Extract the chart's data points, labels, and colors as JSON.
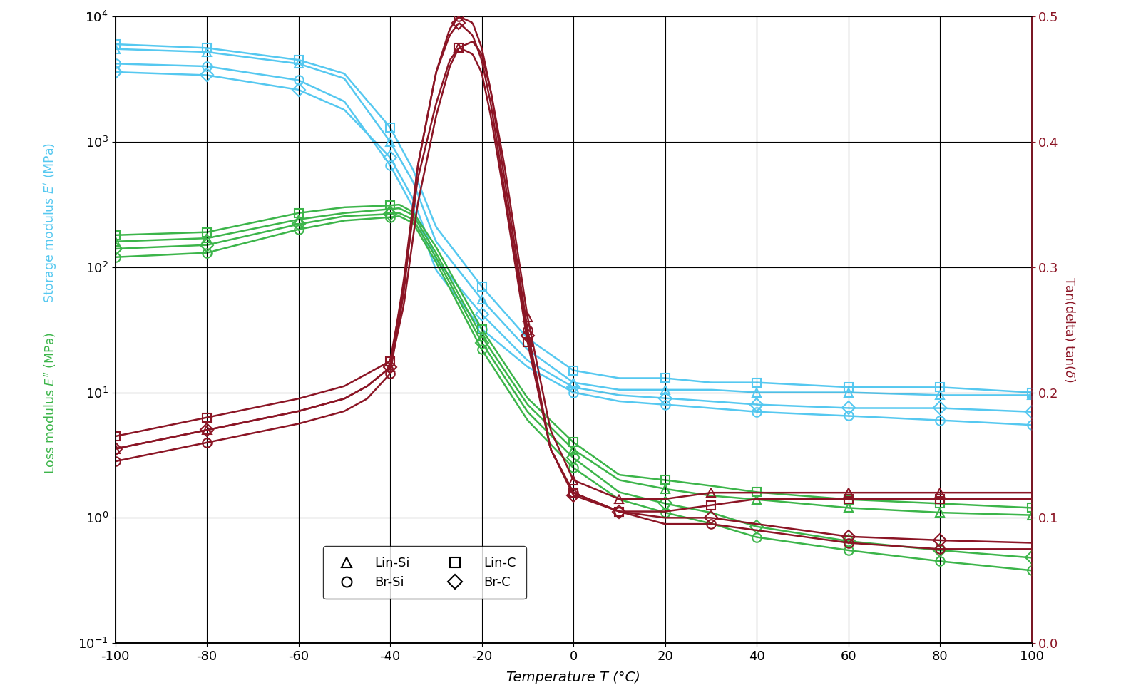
{
  "xlabel": "Temperature T (°C)",
  "xlim": [
    -100,
    100
  ],
  "ylim_left": [
    0.1,
    10000
  ],
  "ylim_right": [
    0.0,
    0.5
  ],
  "colors": {
    "blue": "#55c8f0",
    "green": "#3cb54a",
    "red": "#8b1525"
  },
  "xticks": [
    -100,
    -80,
    -60,
    -40,
    -20,
    0,
    20,
    40,
    60,
    80,
    100
  ],
  "yticks_right": [
    0.0,
    0.1,
    0.2,
    0.3,
    0.4,
    0.5
  ],
  "series": {
    "Lin_Si_storage": {
      "T": [
        -100,
        -80,
        -60,
        -50,
        -40,
        -35,
        -30,
        -20,
        -10,
        0,
        10,
        20,
        30,
        40,
        60,
        80,
        100
      ],
      "E": [
        5500,
        5200,
        4200,
        3200,
        1000,
        480,
        160,
        55,
        22,
        12,
        10.5,
        10.5,
        10.5,
        10,
        10,
        9.5,
        9.5
      ],
      "marker": "^"
    },
    "Lin_C_storage": {
      "T": [
        -100,
        -80,
        -60,
        -50,
        -40,
        -35,
        -30,
        -20,
        -10,
        0,
        10,
        20,
        30,
        40,
        60,
        80,
        100
      ],
      "E": [
        6000,
        5600,
        4500,
        3500,
        1300,
        600,
        210,
        70,
        27,
        15,
        13,
        13,
        12,
        12,
        11,
        11,
        10
      ],
      "marker": "s"
    },
    "Br_Si_storage": {
      "T": [
        -100,
        -80,
        -60,
        -50,
        -40,
        -35,
        -30,
        -20,
        -10,
        0,
        10,
        20,
        30,
        40,
        60,
        80,
        100
      ],
      "E": [
        4200,
        4000,
        3100,
        2100,
        650,
        300,
        95,
        32,
        16,
        10,
        8.5,
        8,
        7.5,
        7,
        6.5,
        6,
        5.5
      ],
      "marker": "o"
    },
    "Br_C_storage": {
      "T": [
        -100,
        -80,
        -60,
        -50,
        -40,
        -35,
        -30,
        -20,
        -10,
        0,
        10,
        20,
        30,
        40,
        60,
        80,
        100
      ],
      "E": [
        3600,
        3400,
        2600,
        1800,
        750,
        350,
        115,
        42,
        18,
        11,
        9.5,
        9,
        8.5,
        8,
        7.5,
        7.5,
        7
      ],
      "marker": "D"
    },
    "Lin_Si_loss": {
      "T": [
        -100,
        -80,
        -60,
        -50,
        -40,
        -38,
        -35,
        -30,
        -20,
        -10,
        0,
        10,
        20,
        30,
        40,
        60,
        80,
        100
      ],
      "E": [
        160,
        170,
        240,
        270,
        290,
        295,
        260,
        130,
        28,
        8,
        3.5,
        2.0,
        1.7,
        1.5,
        1.4,
        1.2,
        1.1,
        1.05
      ],
      "marker": "^"
    },
    "Lin_C_loss": {
      "T": [
        -100,
        -80,
        -60,
        -50,
        -40,
        -38,
        -35,
        -30,
        -20,
        -10,
        0,
        10,
        20,
        30,
        40,
        60,
        80,
        100
      ],
      "E": [
        180,
        190,
        270,
        300,
        310,
        315,
        275,
        145,
        32,
        9,
        4,
        2.2,
        2.0,
        1.8,
        1.6,
        1.4,
        1.3,
        1.2
      ],
      "marker": "s"
    },
    "Br_Si_loss": {
      "T": [
        -100,
        -80,
        -60,
        -50,
        -40,
        -38,
        -35,
        -30,
        -20,
        -10,
        0,
        10,
        20,
        30,
        40,
        60,
        80,
        100
      ],
      "E": [
        120,
        130,
        200,
        235,
        250,
        255,
        225,
        110,
        22,
        6,
        2.5,
        1.4,
        1.1,
        0.9,
        0.7,
        0.55,
        0.45,
        0.38
      ],
      "marker": "o"
    },
    "Br_C_loss": {
      "T": [
        -100,
        -80,
        -60,
        -50,
        -40,
        -38,
        -35,
        -30,
        -20,
        -10,
        0,
        10,
        20,
        30,
        40,
        60,
        80,
        100
      ],
      "E": [
        140,
        150,
        220,
        255,
        265,
        270,
        240,
        120,
        25,
        7,
        3.0,
        1.6,
        1.3,
        1.1,
        0.85,
        0.65,
        0.55,
        0.48
      ],
      "marker": "D"
    },
    "Lin_Si_tan": {
      "T": [
        -100,
        -80,
        -60,
        -55,
        -50,
        -45,
        -40,
        -37,
        -34,
        -30,
        -27,
        -25,
        -22,
        -20,
        -18,
        -15,
        -10,
        -5,
        0,
        10,
        20,
        30,
        40,
        60,
        80,
        100
      ],
      "E": [
        0.155,
        0.17,
        0.185,
        0.19,
        0.195,
        0.205,
        0.22,
        0.27,
        0.35,
        0.42,
        0.46,
        0.475,
        0.48,
        0.47,
        0.44,
        0.38,
        0.26,
        0.17,
        0.13,
        0.115,
        0.115,
        0.12,
        0.12,
        0.12,
        0.12,
        0.12
      ],
      "marker": "^"
    },
    "Lin_C_tan": {
      "T": [
        -100,
        -80,
        -60,
        -55,
        -50,
        -45,
        -40,
        -37,
        -34,
        -30,
        -27,
        -25,
        -22,
        -20,
        -18,
        -15,
        -10,
        -5,
        0,
        10,
        20,
        30,
        40,
        60,
        80,
        100
      ],
      "E": [
        0.165,
        0.18,
        0.195,
        0.2,
        0.205,
        0.215,
        0.225,
        0.285,
        0.37,
        0.43,
        0.465,
        0.475,
        0.47,
        0.455,
        0.42,
        0.355,
        0.24,
        0.155,
        0.12,
        0.105,
        0.105,
        0.11,
        0.115,
        0.115,
        0.115,
        0.115
      ],
      "marker": "s"
    },
    "Br_Si_tan": {
      "T": [
        -100,
        -80,
        -60,
        -55,
        -50,
        -45,
        -40,
        -37,
        -34,
        -30,
        -27,
        -25,
        -22,
        -20,
        -18,
        -15,
        -10,
        -5,
        0,
        10,
        20,
        30,
        40,
        60,
        80,
        100
      ],
      "E": [
        0.145,
        0.16,
        0.175,
        0.18,
        0.185,
        0.195,
        0.215,
        0.28,
        0.38,
        0.455,
        0.49,
        0.5,
        0.495,
        0.475,
        0.44,
        0.37,
        0.25,
        0.155,
        0.12,
        0.105,
        0.095,
        0.095,
        0.09,
        0.08,
        0.075,
        0.075
      ],
      "marker": "o"
    },
    "Br_C_tan": {
      "T": [
        -100,
        -80,
        -60,
        -55,
        -50,
        -45,
        -40,
        -37,
        -34,
        -30,
        -27,
        -25,
        -22,
        -20,
        -18,
        -15,
        -10,
        -5,
        0,
        10,
        20,
        30,
        40,
        60,
        80,
        100
      ],
      "E": [
        0.155,
        0.17,
        0.185,
        0.19,
        0.195,
        0.205,
        0.22,
        0.29,
        0.38,
        0.455,
        0.485,
        0.495,
        0.485,
        0.465,
        0.43,
        0.36,
        0.245,
        0.155,
        0.118,
        0.105,
        0.1,
        0.1,
        0.095,
        0.085,
        0.082,
        0.08
      ],
      "marker": "D"
    }
  },
  "legend": {
    "entries": [
      {
        "label": "Lin-Si",
        "marker": "^"
      },
      {
        "label": "Br-Si",
        "marker": "o"
      },
      {
        "label": "Lin-C",
        "marker": "s"
      },
      {
        "label": "Br-C",
        "marker": "D"
      }
    ]
  }
}
